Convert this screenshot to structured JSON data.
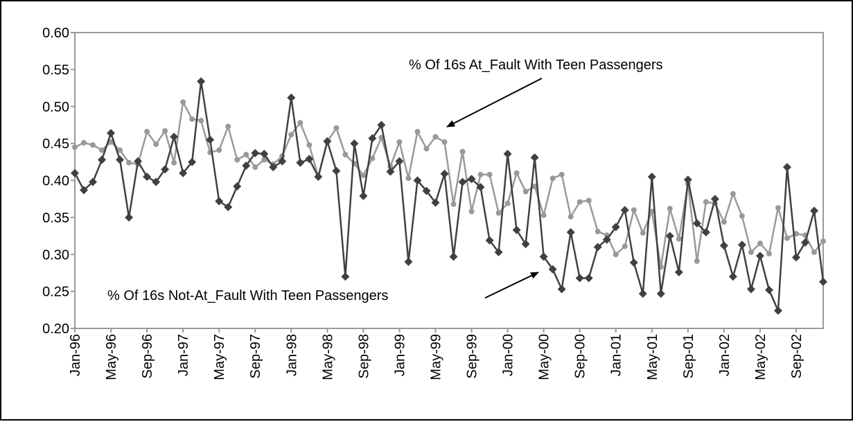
{
  "chart_data": {
    "type": "line",
    "categories": [
      "Jan-96",
      null,
      null,
      null,
      "May-96",
      null,
      null,
      null,
      "Sep-96",
      null,
      null,
      null,
      "Jan-97",
      null,
      null,
      null,
      "May-97",
      null,
      null,
      null,
      "Sep-97",
      null,
      null,
      null,
      "Jan-98",
      null,
      null,
      null,
      "May-98",
      null,
      null,
      null,
      "Sep-98",
      null,
      null,
      null,
      "Jan-99",
      null,
      null,
      null,
      "May-99",
      null,
      null,
      null,
      "Sep-99",
      null,
      null,
      null,
      "Jan-00",
      null,
      null,
      null,
      "May-00",
      null,
      null,
      null,
      "Sep-00",
      null,
      null,
      null,
      "Jan-01",
      null,
      null,
      null,
      "May-01",
      null,
      null,
      null,
      "Sep-01",
      null,
      null,
      null,
      "Jan-02",
      null,
      null,
      null,
      "May-02",
      null,
      null,
      null,
      "Sep-02",
      null,
      null,
      null
    ],
    "series": [
      {
        "name": "% Of 16s At_Fault With Teen Passengers",
        "color": "#999999",
        "marker": "circle",
        "values": [
          0.445,
          0.451,
          0.448,
          0.441,
          0.452,
          0.441,
          0.424,
          0.422,
          0.466,
          0.449,
          0.467,
          0.424,
          0.506,
          0.483,
          0.481,
          0.438,
          0.441,
          0.473,
          0.428,
          0.435,
          0.418,
          0.428,
          0.422,
          0.433,
          0.462,
          0.478,
          0.448,
          0.405,
          0.452,
          0.471,
          0.435,
          0.423,
          0.407,
          0.43,
          0.458,
          0.419,
          0.452,
          0.403,
          0.466,
          0.443,
          0.459,
          0.452,
          0.368,
          0.439,
          0.358,
          0.408,
          0.408,
          0.356,
          0.369,
          0.41,
          0.385,
          0.392,
          0.353,
          0.403,
          0.408,
          0.351,
          0.371,
          0.373,
          0.331,
          0.326,
          0.3,
          0.311,
          0.36,
          0.329,
          0.358,
          0.283,
          0.362,
          0.321,
          0.396,
          0.291,
          0.371,
          0.369,
          0.344,
          0.382,
          0.352,
          0.303,
          0.315,
          0.301,
          0.363,
          0.322,
          0.328,
          0.326,
          0.303,
          0.318
        ]
      },
      {
        "name": "% Of 16s Not-At_Fault With Teen Passengers",
        "color": "#404040",
        "marker": "diamond",
        "values": [
          0.41,
          0.387,
          0.398,
          0.428,
          0.464,
          0.428,
          0.35,
          0.426,
          0.405,
          0.398,
          0.415,
          0.459,
          0.41,
          0.425,
          0.534,
          0.455,
          0.372,
          0.364,
          0.392,
          0.42,
          0.437,
          0.436,
          0.418,
          0.426,
          0.512,
          0.424,
          0.429,
          0.405,
          0.453,
          0.413,
          0.27,
          0.45,
          0.379,
          0.457,
          0.475,
          0.412,
          0.426,
          0.29,
          0.4,
          0.386,
          0.37,
          0.409,
          0.297,
          0.398,
          0.402,
          0.391,
          0.319,
          0.303,
          0.436,
          0.333,
          0.314,
          0.431,
          0.297,
          0.28,
          0.253,
          0.33,
          0.268,
          0.268,
          0.31,
          0.32,
          0.337,
          0.36,
          0.289,
          0.247,
          0.405,
          0.247,
          0.325,
          0.276,
          0.401,
          0.342,
          0.33,
          0.375,
          0.312,
          0.27,
          0.313,
          0.253,
          0.298,
          0.252,
          0.224,
          0.418,
          0.296,
          0.316,
          0.359,
          0.263
        ]
      }
    ],
    "ylim": [
      0.2,
      0.6
    ],
    "yticks": [
      {
        "value": 0.2,
        "label": "0.20"
      },
      0.25,
      {
        "value": 0.3,
        "label": "0.30"
      },
      0.35,
      {
        "value": 0.4,
        "label": "0.40"
      },
      0.45,
      {
        "value": 0.5,
        "label": "0.50"
      },
      0.55,
      {
        "value": 0.6,
        "label": "0.60"
      }
    ],
    "grid": false
  }
}
